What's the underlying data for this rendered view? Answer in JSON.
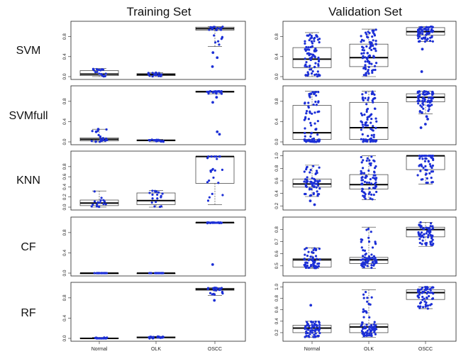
{
  "columns": [
    "Training Set",
    "Validation Set"
  ],
  "rows": [
    "SVM",
    "SVMfull",
    "KNN",
    "CF",
    "RF"
  ],
  "colors": {
    "points": "#1c2fd6",
    "box": "#333333",
    "median": "#000000"
  },
  "chart_data": {
    "type": "boxplot",
    "categories": [
      "Normal",
      "OLK",
      "OSCC"
    ],
    "panels": [
      {
        "row": "SVM",
        "set": "Training Set",
        "ylim": [
          0,
          1.05
        ],
        "yticks": [
          0.0,
          0.4,
          0.8
        ],
        "ytick_labels": [
          "0.0",
          "0.4",
          "0.8"
        ],
        "boxes": [
          {
            "q1": 0.02,
            "median": 0.05,
            "q3": 0.12,
            "low": 0.0,
            "high": 0.16,
            "n": 18
          },
          {
            "q1": 0.02,
            "median": 0.04,
            "q3": 0.06,
            "low": 0.0,
            "high": 0.08,
            "n": 18
          },
          {
            "q1": 0.93,
            "median": 0.96,
            "q3": 0.99,
            "low": 0.6,
            "high": 1.0,
            "n": 24,
            "outliers": [
              0.2,
              0.38,
              0.48
            ]
          }
        ]
      },
      {
        "row": "SVM",
        "set": "Validation Set",
        "ylim": [
          0,
          1.05
        ],
        "yticks": [
          0.0,
          0.4,
          0.8
        ],
        "ytick_labels": [
          "0.0",
          "0.4",
          "0.8"
        ],
        "boxes": [
          {
            "q1": 0.18,
            "median": 0.35,
            "q3": 0.58,
            "low": 0.0,
            "high": 0.88,
            "n": 80
          },
          {
            "q1": 0.2,
            "median": 0.38,
            "q3": 0.65,
            "low": 0.0,
            "high": 0.95,
            "n": 80
          },
          {
            "q1": 0.83,
            "median": 0.9,
            "q3": 0.98,
            "low": 0.7,
            "high": 1.0,
            "n": 70,
            "outliers": [
              0.1,
              0.55
            ]
          }
        ]
      },
      {
        "row": "SVMfull",
        "set": "Training Set",
        "ylim": [
          0,
          1.05
        ],
        "yticks": [
          0.0,
          0.4,
          0.8
        ],
        "ytick_labels": [
          "0.0",
          "0.4",
          "0.8"
        ],
        "boxes": [
          {
            "q1": 0.02,
            "median": 0.05,
            "q3": 0.08,
            "low": 0.0,
            "high": 0.25,
            "n": 18,
            "outliers": [
              0.2,
              0.25
            ]
          },
          {
            "q1": 0.02,
            "median": 0.03,
            "q3": 0.04,
            "low": 0.0,
            "high": 0.05,
            "n": 18
          },
          {
            "q1": 0.98,
            "median": 0.99,
            "q3": 1.0,
            "low": 0.95,
            "high": 1.0,
            "n": 24,
            "outliers": [
              0.15,
              0.2,
              0.78,
              0.88
            ]
          }
        ]
      },
      {
        "row": "SVMfull",
        "set": "Validation Set",
        "ylim": [
          0,
          1.05
        ],
        "yticks": [
          0.0,
          0.4,
          0.8
        ],
        "ytick_labels": [
          "0.0",
          "0.4",
          "0.8"
        ],
        "boxes": [
          {
            "q1": 0.05,
            "median": 0.18,
            "q3": 0.72,
            "low": 0.0,
            "high": 1.0,
            "n": 80
          },
          {
            "q1": 0.05,
            "median": 0.28,
            "q3": 0.78,
            "low": 0.0,
            "high": 1.0,
            "n": 80
          },
          {
            "q1": 0.79,
            "median": 0.88,
            "q3": 0.95,
            "low": 0.55,
            "high": 1.0,
            "n": 70,
            "outliers": [
              0.28,
              0.35,
              0.45,
              0.5
            ]
          }
        ]
      },
      {
        "row": "KNN",
        "set": "Training Set",
        "ylim": [
          0,
          1.05
        ],
        "yticks": [
          0.0,
          0.2,
          0.4,
          0.6,
          0.8
        ],
        "ytick_labels": [
          "0.0",
          "0.2",
          "0.4",
          "0.6",
          "0.8"
        ],
        "boxes": [
          {
            "q1": 0.03,
            "median": 0.08,
            "q3": 0.14,
            "low": 0.0,
            "high": 0.32,
            "n": 16
          },
          {
            "q1": 0.05,
            "median": 0.13,
            "q3": 0.28,
            "low": 0.0,
            "high": 0.33,
            "n": 18
          },
          {
            "q1": 0.47,
            "median": 1.0,
            "q3": 1.0,
            "low": 0.05,
            "high": 1.0,
            "n": 24
          }
        ]
      },
      {
        "row": "KNN",
        "set": "Validation Set",
        "ylim": [
          0.18,
          1.03
        ],
        "yticks": [
          0.2,
          0.4,
          0.6,
          0.8,
          1.0
        ],
        "ytick_labels": [
          "0.2",
          "0.4",
          "0.6",
          "0.8",
          "1.0"
        ],
        "boxes": [
          {
            "q1": 0.5,
            "median": 0.55,
            "q3": 0.63,
            "low": 0.35,
            "high": 0.85,
            "n": 60,
            "outliers": [
              0.22,
              0.28
            ]
          },
          {
            "q1": 0.47,
            "median": 0.54,
            "q3": 0.7,
            "low": 0.3,
            "high": 1.0,
            "n": 70
          },
          {
            "q1": 0.78,
            "median": 1.0,
            "q3": 1.0,
            "low": 0.55,
            "high": 1.0,
            "n": 60
          }
        ]
      },
      {
        "row": "CF",
        "set": "Training Set",
        "ylim": [
          0,
          1.05
        ],
        "yticks": [
          0.0,
          0.4,
          0.8
        ],
        "ytick_labels": [
          "0.0",
          "0.4",
          "0.8"
        ],
        "boxes": [
          {
            "q1": 0.0,
            "median": 0.0,
            "q3": 0.0,
            "low": 0.0,
            "high": 0.0,
            "n": 18
          },
          {
            "q1": 0.0,
            "median": 0.0,
            "q3": 0.0,
            "low": 0.0,
            "high": 0.0,
            "n": 18
          },
          {
            "q1": 0.99,
            "median": 1.0,
            "q3": 1.0,
            "low": 0.98,
            "high": 1.0,
            "n": 24,
            "outliers": [
              0.17
            ]
          }
        ]
      },
      {
        "row": "CF",
        "set": "Validation Set",
        "ylim": [
          0.44,
          0.88
        ],
        "yticks": [
          0.5,
          0.6,
          0.7,
          0.8
        ],
        "ytick_labels": [
          "0.5",
          "0.6",
          "0.7",
          "0.8"
        ],
        "boxes": [
          {
            "q1": 0.49,
            "median": 0.55,
            "q3": 0.56,
            "low": 0.48,
            "high": 0.65,
            "n": 60
          },
          {
            "q1": 0.52,
            "median": 0.55,
            "q3": 0.57,
            "low": 0.48,
            "high": 0.82,
            "n": 70
          },
          {
            "q1": 0.74,
            "median": 0.8,
            "q3": 0.82,
            "low": 0.66,
            "high": 0.86,
            "n": 60
          }
        ]
      },
      {
        "row": "RF",
        "set": "Training Set",
        "ylim": [
          0,
          1.05
        ],
        "yticks": [
          0.0,
          0.4,
          0.8
        ],
        "ytick_labels": [
          "0.0",
          "0.4",
          "0.8"
        ],
        "boxes": [
          {
            "q1": 0.0,
            "median": 0.0,
            "q3": 0.01,
            "low": 0.0,
            "high": 0.02,
            "n": 18
          },
          {
            "q1": 0.01,
            "median": 0.02,
            "q3": 0.03,
            "low": 0.0,
            "high": 0.04,
            "n": 18
          },
          {
            "q1": 0.95,
            "median": 0.97,
            "q3": 0.99,
            "low": 0.85,
            "high": 1.0,
            "n": 24,
            "outliers": [
              0.75
            ]
          }
        ]
      },
      {
        "row": "RF",
        "set": "Validation Set",
        "ylim": [
          0.1,
          1.03
        ],
        "yticks": [
          0.2,
          0.4,
          0.6,
          0.8,
          1.0
        ],
        "ytick_labels": [
          "0.2",
          "0.4",
          "0.6",
          "0.8",
          "1.0"
        ],
        "boxes": [
          {
            "q1": 0.2,
            "median": 0.28,
            "q3": 0.33,
            "low": 0.12,
            "high": 0.4,
            "n": 60,
            "outliers": [
              0.68
            ]
          },
          {
            "q1": 0.2,
            "median": 0.3,
            "q3": 0.35,
            "low": 0.12,
            "high": 0.95,
            "n": 70
          },
          {
            "q1": 0.78,
            "median": 0.9,
            "q3": 0.95,
            "low": 0.62,
            "high": 1.0,
            "n": 60
          }
        ]
      }
    ]
  }
}
